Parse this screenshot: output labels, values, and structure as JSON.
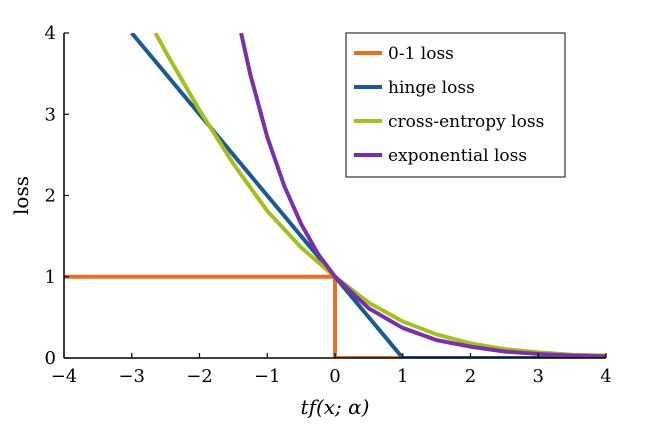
{
  "chart_data": {
    "type": "line",
    "xlabel": "tf(x; α)",
    "ylabel": "loss",
    "xlim": [
      -4,
      4
    ],
    "ylim": [
      0,
      4
    ],
    "xticks": [
      -4,
      -3,
      -2,
      -1,
      0,
      1,
      2,
      3,
      4
    ],
    "yticks": [
      0,
      1,
      2,
      3,
      4
    ],
    "xtick_labels": [
      "−4",
      "−3",
      "−2",
      "−1",
      "0",
      "1",
      "2",
      "3",
      "4"
    ],
    "ytick_labels": [
      "0",
      "1",
      "2",
      "3",
      "4"
    ],
    "grid": false,
    "legend_position": "top-right",
    "series": [
      {
        "name": "0-1 loss",
        "color": "#e8701e",
        "x": [
          -4,
          0,
          0,
          1
        ],
        "y": [
          1,
          1,
          0,
          0
        ]
      },
      {
        "name": "hinge loss",
        "color": "#1a5a8f",
        "x": [
          -3,
          -2,
          -1,
          0,
          1,
          2,
          3,
          4
        ],
        "y": [
          4,
          3,
          2,
          1,
          0,
          0,
          0,
          0
        ]
      },
      {
        "name": "cross-entropy loss",
        "color": "#a3c01e",
        "x": [
          -2.65,
          -2.5,
          -2,
          -1.5,
          -1,
          -0.5,
          0,
          0.5,
          1,
          1.5,
          2,
          2.5,
          3,
          3.5,
          4
        ],
        "y": [
          4.0,
          3.77,
          3.05,
          2.39,
          1.81,
          1.36,
          1.0,
          0.68,
          0.45,
          0.29,
          0.18,
          0.11,
          0.07,
          0.04,
          0.03
        ]
      },
      {
        "name": "exponential loss",
        "color": "#7b2fa8",
        "x": [
          -1.386,
          -1.25,
          -1,
          -0.75,
          -0.5,
          -0.25,
          0,
          0.5,
          1,
          1.5,
          2,
          2.5,
          3,
          3.5,
          4
        ],
        "y": [
          4.0,
          3.49,
          2.72,
          2.12,
          1.65,
          1.28,
          1.0,
          0.61,
          0.37,
          0.22,
          0.14,
          0.08,
          0.05,
          0.03,
          0.02
        ]
      }
    ]
  }
}
